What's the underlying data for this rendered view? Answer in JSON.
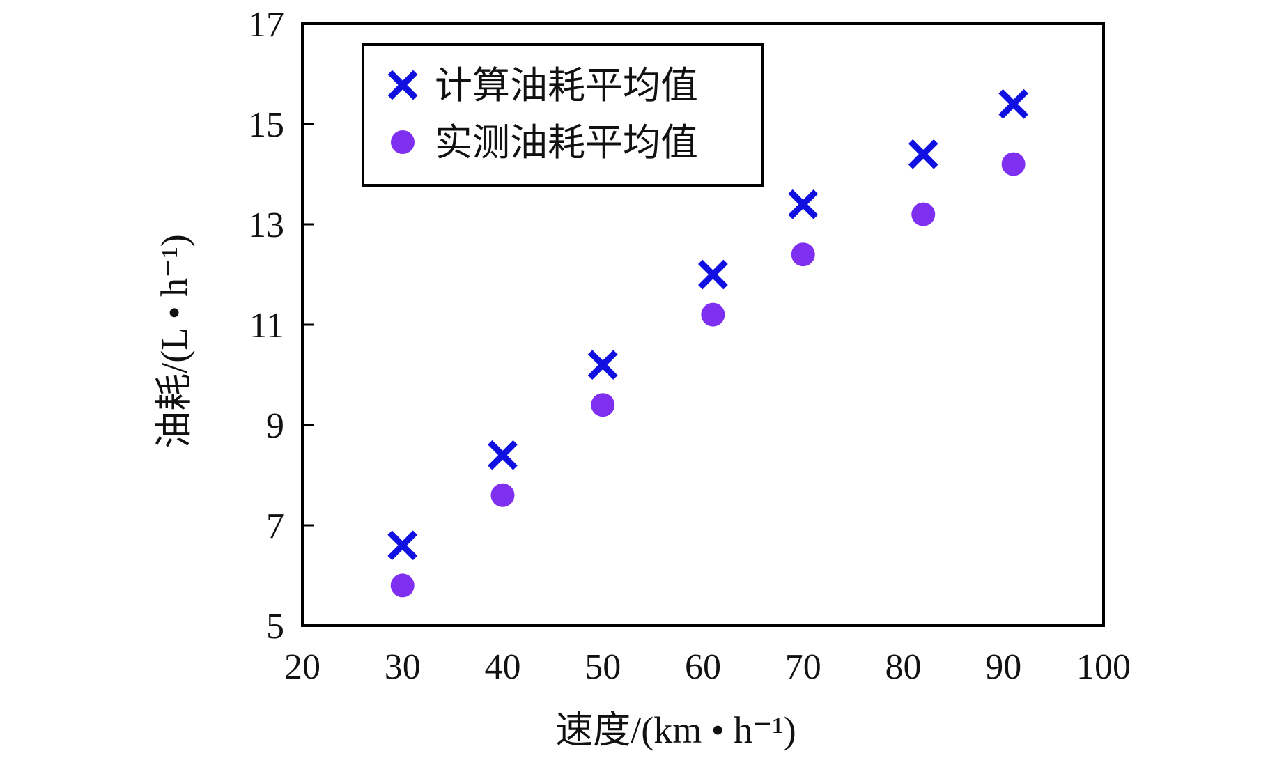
{
  "chart_data": {
    "type": "scatter",
    "xlabel": "速度/(km • h⁻¹)",
    "ylabel": "油耗/(L • h⁻¹)",
    "xlim": [
      20,
      100
    ],
    "ylim": [
      5,
      17
    ],
    "xticks": [
      "20",
      "30",
      "40",
      "50",
      "60",
      "70",
      "80",
      "90",
      "100"
    ],
    "yticks": [
      "5",
      "7",
      "9",
      "11",
      "13",
      "15",
      "17"
    ],
    "grid": false,
    "legend_position": "top-left",
    "series": [
      {
        "name": "计算油耗平均值",
        "marker": "x",
        "color": "#1010e0",
        "points": [
          [
            30,
            6.6
          ],
          [
            40,
            8.4
          ],
          [
            50,
            10.2
          ],
          [
            61,
            12.0
          ],
          [
            70,
            13.4
          ],
          [
            82,
            14.4
          ],
          [
            91,
            15.4
          ]
        ]
      },
      {
        "name": "实测油耗平均值",
        "marker": "circle",
        "color": "#7f2ff0",
        "points": [
          [
            30,
            5.8
          ],
          [
            40,
            7.6
          ],
          [
            50,
            9.4
          ],
          [
            61,
            11.2
          ],
          [
            70,
            12.4
          ],
          [
            82,
            13.2
          ],
          [
            91,
            14.2
          ]
        ]
      }
    ]
  }
}
